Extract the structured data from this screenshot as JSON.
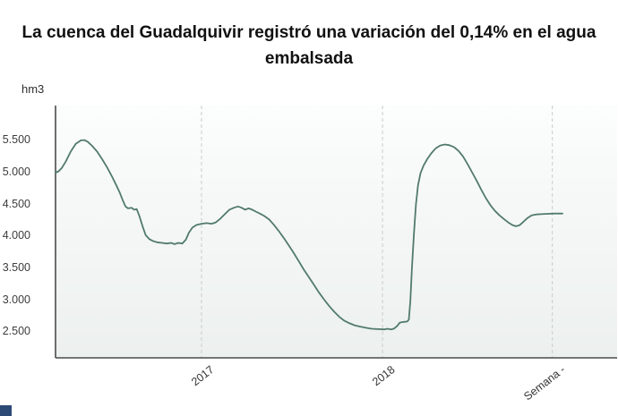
{
  "title": "La cuenca del Guadalquivir registró una variación del 0,14% en el agua embalsada",
  "unit_label": "hm3",
  "footer_logo": {
    "color": "#2d4a77"
  },
  "chart_data": {
    "type": "line",
    "title": "La cuenca del Guadalquivir registró una variación del 0,14% en el agua embalsada",
    "ylabel": "hm3",
    "xlabel": "Semana",
    "ylim": [
      2100,
      6050
    ],
    "legend": "none",
    "grid": "vertical-dashed",
    "colors": {
      "line": "#527a6d",
      "axis": "#4a4a4a",
      "gridline": "#c8cdc9",
      "plot_bg_top": "#fcfdfd",
      "plot_bg_bottom": "#ecf0ee"
    },
    "y_ticks": [
      {
        "value": 5500,
        "label": "5.500"
      },
      {
        "value": 5000,
        "label": "5.000"
      },
      {
        "value": 4500,
        "label": "4.500"
      },
      {
        "value": 4000,
        "label": "4.000"
      },
      {
        "value": 3500,
        "label": "3.500"
      },
      {
        "value": 3000,
        "label": "3.000"
      },
      {
        "value": 2500,
        "label": "2.500"
      }
    ],
    "x_ticks": [
      {
        "pos": 0.288,
        "label": "2017"
      },
      {
        "pos": 0.645,
        "label": "2018"
      },
      {
        "pos": 0.98,
        "label": "Semana -"
      }
    ],
    "points": [
      [
        0.0,
        5000
      ],
      [
        0.006,
        5020
      ],
      [
        0.012,
        5070
      ],
      [
        0.02,
        5170
      ],
      [
        0.03,
        5330
      ],
      [
        0.04,
        5450
      ],
      [
        0.05,
        5505
      ],
      [
        0.057,
        5510
      ],
      [
        0.064,
        5480
      ],
      [
        0.072,
        5420
      ],
      [
        0.082,
        5330
      ],
      [
        0.092,
        5210
      ],
      [
        0.102,
        5080
      ],
      [
        0.112,
        4930
      ],
      [
        0.12,
        4800
      ],
      [
        0.127,
        4680
      ],
      [
        0.133,
        4560
      ],
      [
        0.138,
        4470
      ],
      [
        0.143,
        4440
      ],
      [
        0.15,
        4450
      ],
      [
        0.155,
        4420
      ],
      [
        0.16,
        4430
      ],
      [
        0.165,
        4330
      ],
      [
        0.172,
        4150
      ],
      [
        0.178,
        4020
      ],
      [
        0.185,
        3960
      ],
      [
        0.192,
        3930
      ],
      [
        0.2,
        3910
      ],
      [
        0.21,
        3900
      ],
      [
        0.22,
        3890
      ],
      [
        0.228,
        3900
      ],
      [
        0.235,
        3880
      ],
      [
        0.242,
        3900
      ],
      [
        0.25,
        3890
      ],
      [
        0.257,
        3950
      ],
      [
        0.263,
        4060
      ],
      [
        0.27,
        4140
      ],
      [
        0.278,
        4180
      ],
      [
        0.288,
        4200
      ],
      [
        0.298,
        4210
      ],
      [
        0.308,
        4200
      ],
      [
        0.316,
        4220
      ],
      [
        0.325,
        4280
      ],
      [
        0.334,
        4350
      ],
      [
        0.343,
        4420
      ],
      [
        0.352,
        4450
      ],
      [
        0.36,
        4470
      ],
      [
        0.367,
        4450
      ],
      [
        0.374,
        4420
      ],
      [
        0.381,
        4440
      ],
      [
        0.388,
        4420
      ],
      [
        0.395,
        4390
      ],
      [
        0.403,
        4360
      ],
      [
        0.412,
        4320
      ],
      [
        0.421,
        4270
      ],
      [
        0.43,
        4190
      ],
      [
        0.44,
        4090
      ],
      [
        0.45,
        3980
      ],
      [
        0.46,
        3860
      ],
      [
        0.47,
        3740
      ],
      [
        0.48,
        3610
      ],
      [
        0.49,
        3480
      ],
      [
        0.5,
        3360
      ],
      [
        0.51,
        3240
      ],
      [
        0.52,
        3120
      ],
      [
        0.53,
        3010
      ],
      [
        0.54,
        2910
      ],
      [
        0.55,
        2820
      ],
      [
        0.56,
        2740
      ],
      [
        0.57,
        2680
      ],
      [
        0.58,
        2640
      ],
      [
        0.59,
        2610
      ],
      [
        0.6,
        2590
      ],
      [
        0.612,
        2570
      ],
      [
        0.624,
        2555
      ],
      [
        0.636,
        2550
      ],
      [
        0.648,
        2545
      ],
      [
        0.655,
        2555
      ],
      [
        0.662,
        2545
      ],
      [
        0.668,
        2560
      ],
      [
        0.674,
        2600
      ],
      [
        0.679,
        2650
      ],
      [
        0.684,
        2660
      ],
      [
        0.69,
        2665
      ],
      [
        0.694,
        2670
      ],
      [
        0.697,
        2700
      ],
      [
        0.7,
        3000
      ],
      [
        0.703,
        3500
      ],
      [
        0.707,
        4050
      ],
      [
        0.711,
        4500
      ],
      [
        0.715,
        4800
      ],
      [
        0.72,
        4990
      ],
      [
        0.726,
        5110
      ],
      [
        0.733,
        5210
      ],
      [
        0.741,
        5300
      ],
      [
        0.75,
        5380
      ],
      [
        0.759,
        5425
      ],
      [
        0.768,
        5440
      ],
      [
        0.777,
        5430
      ],
      [
        0.786,
        5400
      ],
      [
        0.795,
        5340
      ],
      [
        0.804,
        5250
      ],
      [
        0.813,
        5130
      ],
      [
        0.822,
        5000
      ],
      [
        0.831,
        4870
      ],
      [
        0.84,
        4730
      ],
      [
        0.849,
        4600
      ],
      [
        0.858,
        4490
      ],
      [
        0.867,
        4400
      ],
      [
        0.876,
        4330
      ],
      [
        0.885,
        4270
      ],
      [
        0.893,
        4220
      ],
      [
        0.901,
        4180
      ],
      [
        0.908,
        4160
      ],
      [
        0.915,
        4175
      ],
      [
        0.923,
        4230
      ],
      [
        0.931,
        4290
      ],
      [
        0.939,
        4330
      ],
      [
        0.948,
        4345
      ],
      [
        0.958,
        4350
      ],
      [
        0.97,
        4355
      ],
      [
        0.985,
        4360
      ],
      [
        1.0,
        4360
      ]
    ]
  }
}
